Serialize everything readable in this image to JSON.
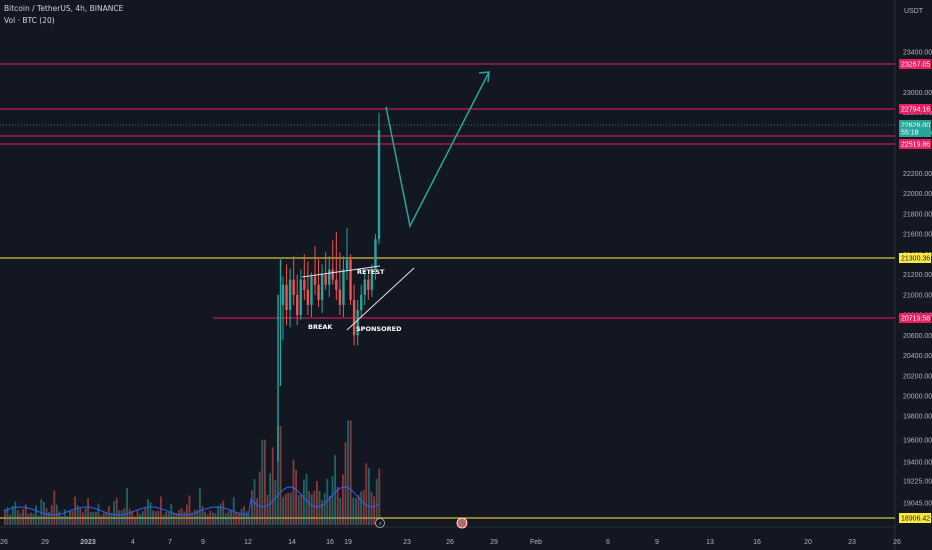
{
  "header": {
    "symbol_line": "Bitcoin / TetherUS, 4h, BINANCE",
    "volume_line": "Vol · BTC (20)",
    "currency": "USDT"
  },
  "colors": {
    "background": "#131722",
    "up": "#26a69a",
    "down": "#ef5350",
    "resistance": "#e91e63",
    "support": "#ffeb3b",
    "projection": "#26a69a",
    "volume_ma": "#2962ff"
  },
  "chart_data": {
    "type": "candlestick",
    "symbol": "Bitcoin / TetherUS",
    "timeframe": "4h",
    "exchange": "BINANCE",
    "y_axis": {
      "ticks": [
        23400,
        23000,
        22800,
        22600,
        22200,
        22000,
        21800,
        21600,
        21400,
        21200,
        21000,
        20800,
        20600,
        20400,
        20200,
        20000,
        19800,
        19600,
        19400,
        19225,
        19045,
        18906
      ],
      "tick_labels": [
        "23400.00",
        "23000.00",
        "22800.00",
        "22600.00",
        "22200.00",
        "22000.00",
        "21800.00",
        "21600.00",
        "21400.00",
        "21200.00",
        "21000.00",
        "20800.00",
        "20600.00",
        "20400.00",
        "20200.00",
        "20000.00",
        "19800.00",
        "19600.00",
        "19400.00",
        "19225.00",
        "19045.00",
        "18906.42"
      ]
    },
    "x_axis": {
      "ticks": [
        "26",
        "29",
        "2023",
        "4",
        "7",
        "9",
        "12",
        "14",
        "16",
        "19",
        "23",
        "26",
        "29",
        "Feb",
        "6",
        "9",
        "13",
        "16",
        "20",
        "23",
        "26"
      ]
    },
    "price_levels": [
      {
        "label": "23267.05",
        "value": 23267.05,
        "kind": "resistance"
      },
      {
        "label": "22794.16",
        "value": 22794.16,
        "kind": "resistance"
      },
      {
        "label": "22626.00",
        "value": 22626.0,
        "kind": "last_price"
      },
      {
        "label": "55:18",
        "value": 22575,
        "kind": "countdown"
      },
      {
        "label": "22519.86",
        "value": 22519.86,
        "kind": "resistance"
      },
      {
        "label": "21300.36",
        "value": 21300.36,
        "kind": "support"
      },
      {
        "label": "20719.58",
        "value": 20719.58,
        "kind": "resistance"
      },
      {
        "label": "18906.42",
        "value": 18906.42,
        "kind": "support"
      }
    ],
    "candles": [
      {
        "o": 20900,
        "h": 21180,
        "l": 20550,
        "c": 21100
      },
      {
        "o": 21100,
        "h": 21300,
        "l": 20700,
        "c": 20850
      },
      {
        "o": 20850,
        "h": 21260,
        "l": 20680,
        "c": 21150
      },
      {
        "o": 21150,
        "h": 21380,
        "l": 20900,
        "c": 21000
      },
      {
        "o": 21000,
        "h": 21200,
        "l": 20700,
        "c": 20800
      },
      {
        "o": 20800,
        "h": 21250,
        "l": 20750,
        "c": 21150
      },
      {
        "o": 21150,
        "h": 21400,
        "l": 20950,
        "c": 21050
      },
      {
        "o": 21050,
        "h": 21330,
        "l": 20800,
        "c": 20900
      },
      {
        "o": 20900,
        "h": 21220,
        "l": 20780,
        "c": 21180
      },
      {
        "o": 21180,
        "h": 21480,
        "l": 21000,
        "c": 21100
      },
      {
        "o": 21100,
        "h": 21350,
        "l": 20880,
        "c": 20950
      },
      {
        "o": 20950,
        "h": 21300,
        "l": 20820,
        "c": 21200
      },
      {
        "o": 21200,
        "h": 21420,
        "l": 21050,
        "c": 21100
      },
      {
        "o": 21100,
        "h": 21380,
        "l": 20980,
        "c": 21250
      },
      {
        "o": 21250,
        "h": 21540,
        "l": 21100,
        "c": 21150
      },
      {
        "o": 21150,
        "h": 21620,
        "l": 20950,
        "c": 21050
      },
      {
        "o": 21050,
        "h": 21420,
        "l": 20800,
        "c": 20900
      },
      {
        "o": 20900,
        "h": 21380,
        "l": 20780,
        "c": 21250
      },
      {
        "o": 21250,
        "h": 21660,
        "l": 21150,
        "c": 21350
      },
      {
        "o": 21350,
        "h": 21400,
        "l": 20900,
        "c": 20950
      },
      {
        "o": 20950,
        "h": 21100,
        "l": 20500,
        "c": 20600
      },
      {
        "o": 20600,
        "h": 20950,
        "l": 20500,
        "c": 20850
      },
      {
        "o": 20850,
        "h": 21100,
        "l": 20780,
        "c": 21000
      },
      {
        "o": 21000,
        "h": 21250,
        "l": 20900,
        "c": 21150
      },
      {
        "o": 21150,
        "h": 21200,
        "l": 20950,
        "c": 21050
      },
      {
        "o": 21050,
        "h": 21300,
        "l": 20980,
        "c": 21250
      },
      {
        "o": 21250,
        "h": 21600,
        "l": 21150,
        "c": 21550
      },
      {
        "o": 21550,
        "h": 22800,
        "l": 21500,
        "c": 22626
      }
    ],
    "volume": [
      520,
      380,
      300,
      420,
      610,
      340,
      280,
      390,
      460,
      310,
      270,
      350,
      420,
      300,
      560,
      640,
      380,
      330,
      470,
      800,
      520,
      300,
      260,
      340,
      290,
      310,
      420,
      620
    ],
    "projection_path": [
      {
        "time_index": 28.4,
        "price": 22780
      },
      {
        "time_index": 31.5,
        "price": 21550
      },
      {
        "time_index": 44,
        "price": 23200
      }
    ],
    "annotations": [
      {
        "text": "RETEST"
      },
      {
        "text": "BREAK"
      },
      {
        "text": "SPONSORED"
      }
    ]
  }
}
